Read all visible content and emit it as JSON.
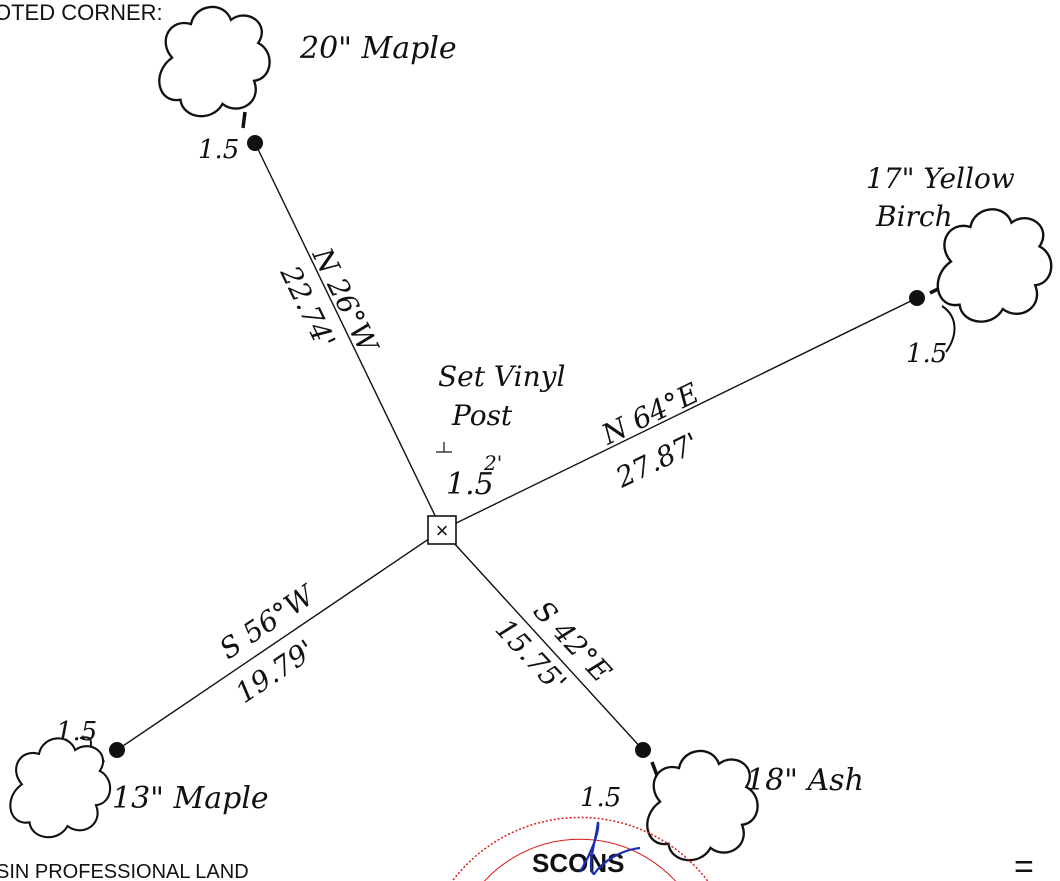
{
  "header": {
    "top_text": "OTED CORNER:",
    "bottom_left_text": "SIN PROFESSIONAL LAND",
    "bottom_right_mark": "="
  },
  "center": {
    "label_line1": "Set Vinyl",
    "label_line2": "Post",
    "height_label": "1.5",
    "height_exp": "2'",
    "symbol": "×"
  },
  "ties": [
    {
      "id": "nw",
      "bearing": "N 26°W",
      "distance": "22.74'",
      "tree": "20\" Maple",
      "offset": "1.5"
    },
    {
      "id": "ne",
      "bearing": "N 64°E",
      "distance": "27.87'",
      "tree_line1": "17\" Yellow",
      "tree_line2": "Birch",
      "offset": "1.5"
    },
    {
      "id": "sw",
      "bearing": "S 56°W",
      "distance": "19.79'",
      "tree": "13\" Maple",
      "offset": "1.5"
    },
    {
      "id": "se",
      "bearing": "S 42°E",
      "distance": "15.75'",
      "tree": "18\" Ash",
      "offset": "1.5"
    }
  ],
  "seal": {
    "text": "SCONS",
    "color": "#d81b1b",
    "signature_color": "#1a2fb0"
  }
}
